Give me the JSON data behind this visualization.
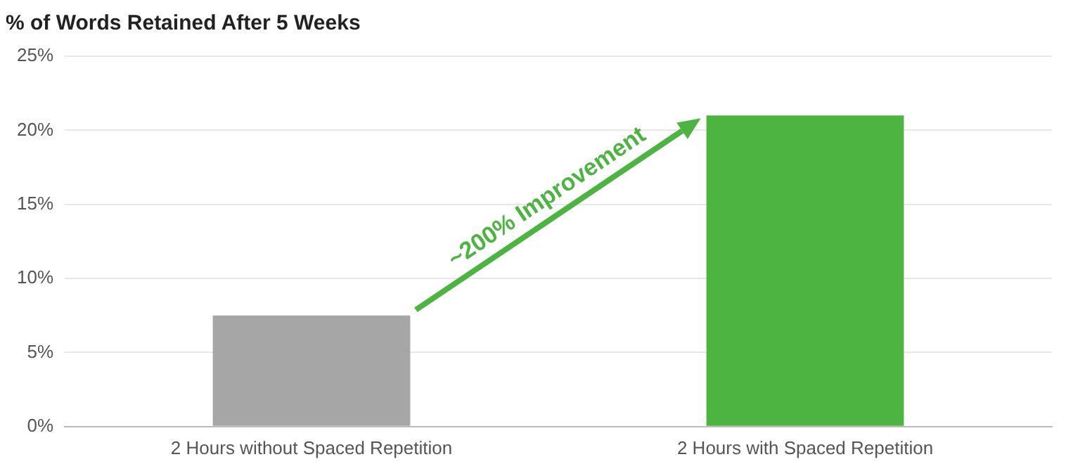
{
  "chart_data": {
    "type": "bar",
    "title": "% of Words Retained After 5 Weeks",
    "categories": [
      "2 Hours without Spaced Repetition",
      "2 Hours with Spaced Repetition"
    ],
    "values": [
      7.5,
      21
    ],
    "colors": [
      "#a6a6a6",
      "#4db442"
    ],
    "ylim": [
      0,
      25
    ],
    "yticks": [
      {
        "value": 0,
        "label": "0%"
      },
      {
        "value": 5,
        "label": "5%"
      },
      {
        "value": 10,
        "label": "10%"
      },
      {
        "value": 15,
        "label": "15%"
      },
      {
        "value": 20,
        "label": "20%"
      },
      {
        "value": 25,
        "label": "25%"
      }
    ],
    "grid": "y",
    "legend": false,
    "annotations": [
      "~200% Improvement"
    ]
  }
}
